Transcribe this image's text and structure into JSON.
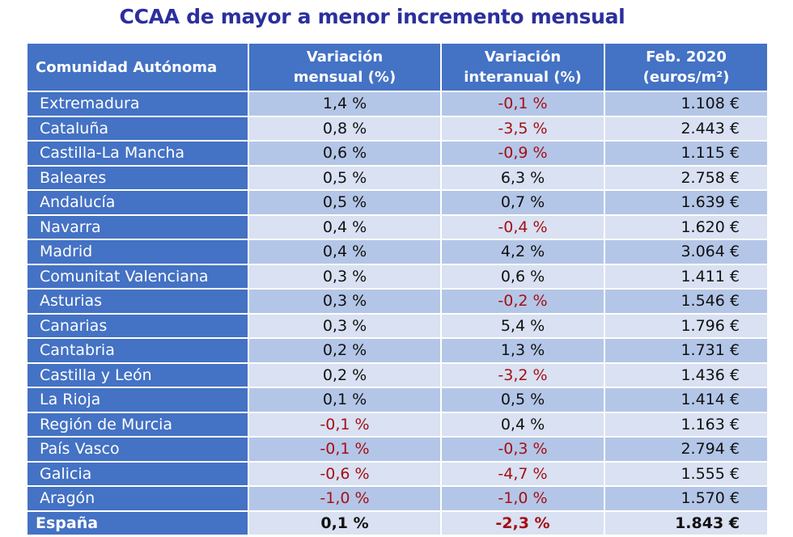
{
  "title": "CCAA de mayor a menor incremento mensual",
  "headers": {
    "region": "Comunidad Autónoma",
    "monthly_1": "Variación",
    "monthly_2": "mensual (%)",
    "annual_1": "Variación",
    "annual_2": "interanual (%)",
    "price_1": "Feb. 2020",
    "price_2": "(euros/m²)"
  },
  "colors": {
    "header_bg": "#4472c4",
    "row_dark": "#b4c6e7",
    "row_light": "#d9e1f2",
    "negative": "#a50f15",
    "title": "#2b2f9e"
  },
  "rows": [
    {
      "region": "Extremadura",
      "monthly": "1,4 %",
      "annual": "-0,1 %",
      "price": "1.108 €"
    },
    {
      "region": "Cataluña",
      "monthly": "0,8 %",
      "annual": "-3,5 %",
      "price": "2.443 €"
    },
    {
      "region": "Castilla-La Mancha",
      "monthly": "0,6 %",
      "annual": "-0,9 %",
      "price": "1.115 €"
    },
    {
      "region": "Baleares",
      "monthly": "0,5 %",
      "annual": "6,3 %",
      "price": "2.758 €"
    },
    {
      "region": "Andalucía",
      "monthly": "0,5 %",
      "annual": "0,7 %",
      "price": "1.639 €"
    },
    {
      "region": "Navarra",
      "monthly": "0,4 %",
      "annual": "-0,4 %",
      "price": "1.620 €"
    },
    {
      "region": "Madrid",
      "monthly": "0,4 %",
      "annual": "4,2 %",
      "price": "3.064 €"
    },
    {
      "region": "Comunitat Valenciana",
      "monthly": "0,3 %",
      "annual": "0,6 %",
      "price": "1.411 €"
    },
    {
      "region": "Asturias",
      "monthly": "0,3 %",
      "annual": "-0,2 %",
      "price": "1.546 €"
    },
    {
      "region": "Canarias",
      "monthly": "0,3 %",
      "annual": "5,4 %",
      "price": "1.796 €"
    },
    {
      "region": "Cantabria",
      "monthly": "0,2 %",
      "annual": "1,3 %",
      "price": "1.731 €"
    },
    {
      "region": "Castilla y León",
      "monthly": "0,2 %",
      "annual": "-3,2 %",
      "price": "1.436 €"
    },
    {
      "region": "La Rioja",
      "monthly": "0,1 %",
      "annual": "0,5 %",
      "price": "1.414 €"
    },
    {
      "region": "Región de Murcia",
      "monthly": "-0,1 %",
      "annual": "0,4 %",
      "price": "1.163 €"
    },
    {
      "region": "País Vasco",
      "monthly": "-0,1 %",
      "annual": "-0,3 %",
      "price": "2.794 €"
    },
    {
      "region": "Galicia",
      "monthly": "-0,6 %",
      "annual": "-4,7 %",
      "price": "1.555 €"
    },
    {
      "region": "Aragón",
      "monthly": "-1,0 %",
      "annual": "-1,0 %",
      "price": "1.570 €"
    }
  ],
  "total": {
    "region": "España",
    "monthly": "0,1 %",
    "annual": "-2,3 %",
    "price": "1.843 €"
  }
}
